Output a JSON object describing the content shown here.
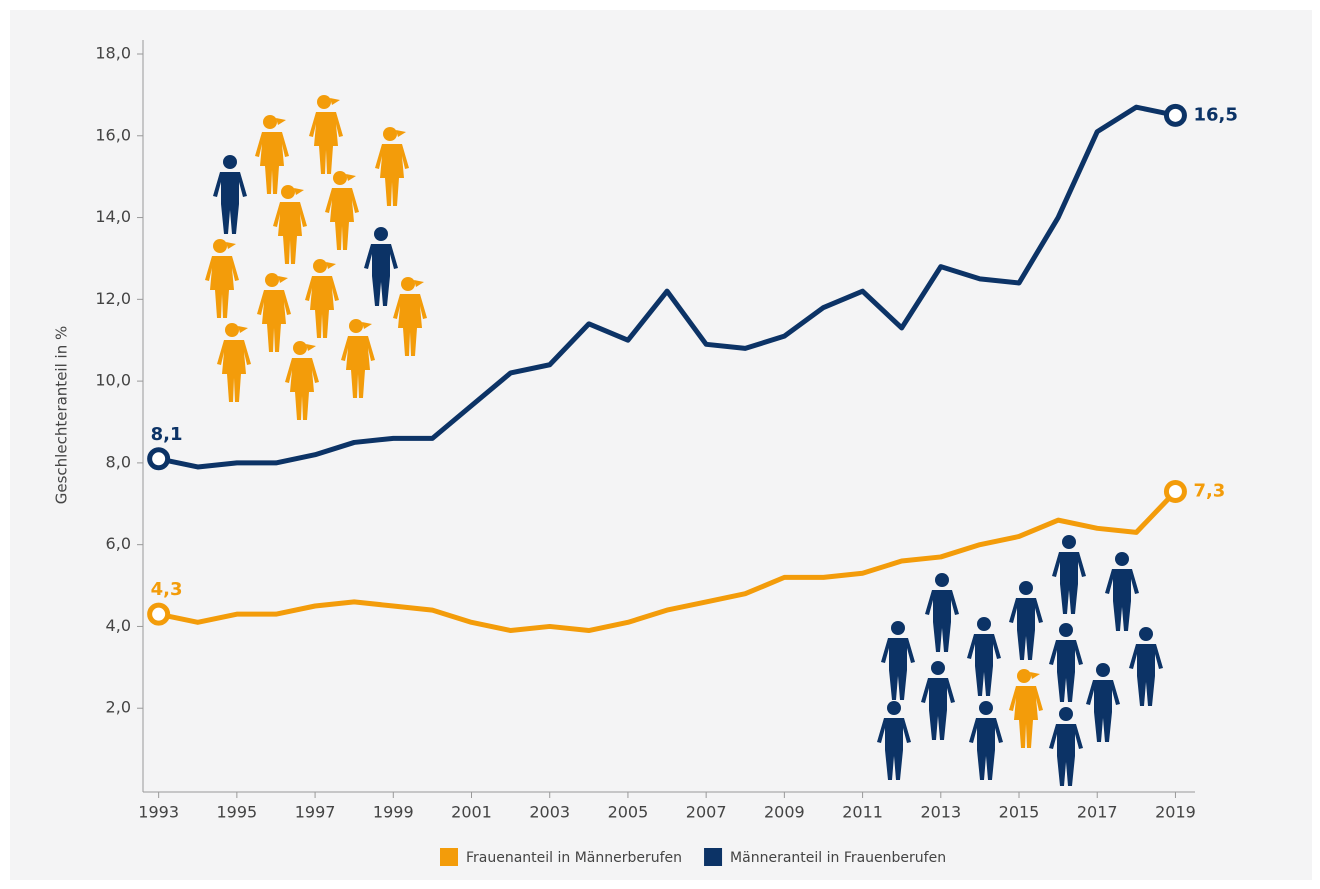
{
  "chart_data": {
    "type": "line",
    "y_label": "Geschlechteranteil in %",
    "x": [
      1993,
      1994,
      1995,
      1996,
      1997,
      1998,
      1999,
      2000,
      2001,
      2002,
      2003,
      2004,
      2005,
      2006,
      2007,
      2008,
      2009,
      2010,
      2011,
      2012,
      2013,
      2014,
      2015,
      2016,
      2017,
      2018,
      2019
    ],
    "series": [
      {
        "name": "Frauenanteil in Männerberufen",
        "color": "#f39c0a",
        "values": [
          4.3,
          4.1,
          4.3,
          4.3,
          4.5,
          4.6,
          4.5,
          4.4,
          4.1,
          3.9,
          4.0,
          3.9,
          4.1,
          4.4,
          4.6,
          4.8,
          5.2,
          5.2,
          5.3,
          5.6,
          5.7,
          6.0,
          6.2,
          6.6,
          6.4,
          6.3,
          7.3
        ],
        "value_labels": [
          "4,3",
          null,
          null,
          null,
          null,
          null,
          null,
          null,
          null,
          null,
          null,
          null,
          null,
          null,
          null,
          null,
          null,
          null,
          null,
          null,
          null,
          null,
          null,
          null,
          null,
          null,
          "7,3"
        ]
      },
      {
        "name": "Männeranteil in Frauenberufen",
        "color": "#0c3366",
        "values": [
          8.1,
          7.9,
          8.0,
          8.0,
          8.2,
          8.5,
          8.6,
          8.6,
          9.4,
          10.2,
          10.4,
          11.4,
          11.0,
          12.2,
          10.9,
          10.8,
          11.1,
          11.8,
          12.2,
          11.3,
          12.8,
          12.5,
          12.4,
          14.0,
          16.1,
          16.7,
          16.5
        ],
        "value_labels": [
          "8,1",
          null,
          null,
          null,
          null,
          null,
          null,
          null,
          null,
          null,
          null,
          null,
          null,
          null,
          null,
          null,
          null,
          null,
          null,
          null,
          null,
          null,
          null,
          null,
          null,
          null,
          "16,5"
        ]
      }
    ],
    "xlim": [
      1992.6,
      2019.5
    ],
    "xticks": [
      1993,
      1995,
      1997,
      1999,
      2001,
      2003,
      2005,
      2007,
      2009,
      2011,
      2013,
      2015,
      2017,
      2019
    ],
    "ylim": [
      0,
      18
    ],
    "yticks": [
      {
        "value": 2,
        "label": "2,0"
      },
      {
        "value": 4,
        "label": "4,0"
      },
      {
        "value": 6,
        "label": "6,0"
      },
      {
        "value": 8,
        "label": "8,0"
      },
      {
        "value": 10,
        "label": "10,0"
      },
      {
        "value": 12,
        "label": "12,0"
      },
      {
        "value": 14,
        "label": "14,0"
      },
      {
        "value": 16,
        "label": "16,0"
      },
      {
        "value": 18,
        "label": "18,0"
      }
    ],
    "legend": "bottom"
  }
}
